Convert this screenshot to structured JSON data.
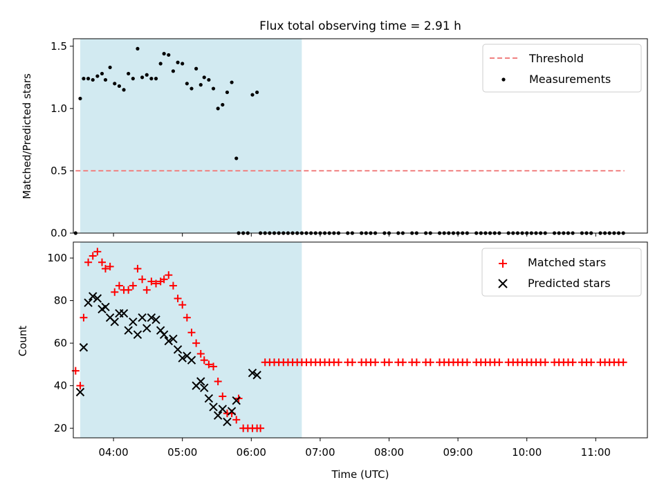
{
  "title": "Flux total observing time = 2.91 h",
  "chart_data": [
    {
      "type": "scatter",
      "ylabel": "Matched/Predicted stars",
      "xlabel": "",
      "xlim": [
        "03:25",
        "11:45"
      ],
      "ylim": [
        0,
        1.56
      ],
      "yticks": [
        "0.0",
        "0.5",
        "1.0",
        "1.5"
      ],
      "yticks_values": [
        0,
        0.5,
        1.0,
        1.5
      ],
      "shaded_interval": [
        "03:31",
        "06:44"
      ],
      "shade_color": "#add8e6",
      "legend_position": "top-right",
      "threshold": {
        "name": "Threshold",
        "y": 0.5,
        "x_range": [
          "03:27",
          "11:25"
        ],
        "color": "#f08080"
      },
      "series": [
        {
          "name": "Measurements",
          "marker": "dot",
          "color": "#000000",
          "points": [
            [
              "03:27",
              0.0
            ],
            [
              "03:31",
              1.08
            ],
            [
              "03:34",
              1.24
            ],
            [
              "03:38",
              1.24
            ],
            [
              "03:42",
              1.23
            ],
            [
              "03:46",
              1.26
            ],
            [
              "03:50",
              1.28
            ],
            [
              "03:53",
              1.23
            ],
            [
              "03:57",
              1.33
            ],
            [
              "04:01",
              1.2
            ],
            [
              "04:05",
              1.18
            ],
            [
              "04:09",
              1.15
            ],
            [
              "04:13",
              1.28
            ],
            [
              "04:17",
              1.24
            ],
            [
              "04:21",
              1.48
            ],
            [
              "04:25",
              1.25
            ],
            [
              "04:29",
              1.27
            ],
            [
              "04:33",
              1.24
            ],
            [
              "04:37",
              1.24
            ],
            [
              "04:41",
              1.36
            ],
            [
              "04:44",
              1.44
            ],
            [
              "04:48",
              1.43
            ],
            [
              "04:52",
              1.3
            ],
            [
              "04:56",
              1.37
            ],
            [
              "05:00",
              1.36
            ],
            [
              "05:04",
              1.2
            ],
            [
              "05:08",
              1.16
            ],
            [
              "05:12",
              1.32
            ],
            [
              "05:16",
              1.19
            ],
            [
              "05:19",
              1.25
            ],
            [
              "05:23",
              1.23
            ],
            [
              "05:27",
              1.16
            ],
            [
              "05:31",
              1.0
            ],
            [
              "05:35",
              1.03
            ],
            [
              "05:39",
              1.13
            ],
            [
              "05:43",
              1.21
            ],
            [
              "05:47",
              0.6
            ],
            [
              "05:49",
              0.0
            ],
            [
              "05:53",
              0.0
            ],
            [
              "05:57",
              0.0
            ],
            [
              "06:01",
              1.11
            ],
            [
              "06:05",
              1.13
            ],
            [
              "06:08",
              0.0
            ],
            [
              "06:12",
              0.0
            ],
            [
              "06:16",
              0.0
            ],
            [
              "06:20",
              0.0
            ],
            [
              "06:24",
              0.0
            ],
            [
              "06:28",
              0.0
            ],
            [
              "06:32",
              0.0
            ],
            [
              "06:36",
              0.0
            ],
            [
              "06:40",
              0.0
            ],
            [
              "06:44",
              0.0
            ],
            [
              "06:48",
              0.0
            ],
            [
              "06:52",
              0.0
            ],
            [
              "06:56",
              0.0
            ],
            [
              "07:00",
              0.0
            ],
            [
              "07:04",
              0.0
            ],
            [
              "07:08",
              0.0
            ],
            [
              "07:12",
              0.0
            ],
            [
              "07:16",
              0.0
            ],
            [
              "07:24",
              0.0
            ],
            [
              "07:28",
              0.0
            ],
            [
              "07:36",
              0.0
            ],
            [
              "07:40",
              0.0
            ],
            [
              "07:44",
              0.0
            ],
            [
              "07:48",
              0.0
            ],
            [
              "07:56",
              0.0
            ],
            [
              "08:00",
              0.0
            ],
            [
              "08:08",
              0.0
            ],
            [
              "08:12",
              0.0
            ],
            [
              "08:20",
              0.0
            ],
            [
              "08:24",
              0.0
            ],
            [
              "08:32",
              0.0
            ],
            [
              "08:36",
              0.0
            ],
            [
              "08:44",
              0.0
            ],
            [
              "08:48",
              0.0
            ],
            [
              "08:52",
              0.0
            ],
            [
              "08:56",
              0.0
            ],
            [
              "09:00",
              0.0
            ],
            [
              "09:04",
              0.0
            ],
            [
              "09:08",
              0.0
            ],
            [
              "09:16",
              0.0
            ],
            [
              "09:20",
              0.0
            ],
            [
              "09:24",
              0.0
            ],
            [
              "09:28",
              0.0
            ],
            [
              "09:32",
              0.0
            ],
            [
              "09:36",
              0.0
            ],
            [
              "09:44",
              0.0
            ],
            [
              "09:48",
              0.0
            ],
            [
              "09:52",
              0.0
            ],
            [
              "09:56",
              0.0
            ],
            [
              "10:00",
              0.0
            ],
            [
              "10:04",
              0.0
            ],
            [
              "10:08",
              0.0
            ],
            [
              "10:12",
              0.0
            ],
            [
              "10:16",
              0.0
            ],
            [
              "10:24",
              0.0
            ],
            [
              "10:28",
              0.0
            ],
            [
              "10:32",
              0.0
            ],
            [
              "10:36",
              0.0
            ],
            [
              "10:40",
              0.0
            ],
            [
              "10:48",
              0.0
            ],
            [
              "10:52",
              0.0
            ],
            [
              "10:56",
              0.0
            ],
            [
              "11:04",
              0.0
            ],
            [
              "11:08",
              0.0
            ],
            [
              "11:12",
              0.0
            ],
            [
              "11:16",
              0.0
            ],
            [
              "11:20",
              0.0
            ],
            [
              "11:24",
              0.0
            ]
          ]
        }
      ]
    },
    {
      "type": "scatter",
      "ylabel": "Count",
      "xlabel": "Time (UTC)",
      "xlim": [
        "03:25",
        "11:45"
      ],
      "ylim": [
        15.5,
        107.5
      ],
      "yticks": [
        "20",
        "40",
        "60",
        "80",
        "100"
      ],
      "yticks_values": [
        20,
        40,
        60,
        80,
        100
      ],
      "xticks": [
        "04:00",
        "05:00",
        "06:00",
        "07:00",
        "08:00",
        "09:00",
        "10:00",
        "11:00"
      ],
      "shaded_interval": [
        "03:31",
        "06:44"
      ],
      "shade_color": "#add8e6",
      "legend_position": "top-right",
      "series": [
        {
          "name": "Matched stars",
          "marker": "plus",
          "color": "#ff0000",
          "points": [
            [
              "03:27",
              47
            ],
            [
              "03:31",
              40
            ],
            [
              "03:34",
              72
            ],
            [
              "03:38",
              98
            ],
            [
              "03:42",
              101
            ],
            [
              "03:46",
              103
            ],
            [
              "03:50",
              98
            ],
            [
              "03:53",
              95
            ],
            [
              "03:57",
              96
            ],
            [
              "04:01",
              84
            ],
            [
              "04:05",
              87
            ],
            [
              "04:09",
              85
            ],
            [
              "04:13",
              85
            ],
            [
              "04:17",
              87
            ],
            [
              "04:21",
              95
            ],
            [
              "04:25",
              90
            ],
            [
              "04:29",
              85
            ],
            [
              "04:33",
              89
            ],
            [
              "04:37",
              88
            ],
            [
              "04:41",
              89
            ],
            [
              "04:44",
              90
            ],
            [
              "04:48",
              92
            ],
            [
              "04:52",
              87
            ],
            [
              "04:56",
              81
            ],
            [
              "05:00",
              78
            ],
            [
              "05:04",
              72
            ],
            [
              "05:08",
              65
            ],
            [
              "05:12",
              60
            ],
            [
              "05:16",
              55
            ],
            [
              "05:19",
              52
            ],
            [
              "05:23",
              50
            ],
            [
              "05:27",
              49
            ],
            [
              "05:31",
              42
            ],
            [
              "05:35",
              35
            ],
            [
              "05:39",
              27
            ],
            [
              "05:43",
              27
            ],
            [
              "05:47",
              24
            ],
            [
              "05:49",
              34
            ],
            [
              "05:53",
              20
            ],
            [
              "05:57",
              20
            ],
            [
              "06:01",
              20
            ],
            [
              "06:05",
              20
            ],
            [
              "06:08",
              20
            ],
            [
              "06:12",
              51
            ],
            [
              "06:16",
              51
            ],
            [
              "06:20",
              51
            ],
            [
              "06:24",
              51
            ],
            [
              "06:28",
              51
            ],
            [
              "06:32",
              51
            ],
            [
              "06:36",
              51
            ],
            [
              "06:40",
              51
            ],
            [
              "06:44",
              51
            ],
            [
              "06:48",
              51
            ],
            [
              "06:52",
              51
            ],
            [
              "06:56",
              51
            ],
            [
              "07:00",
              51
            ],
            [
              "07:04",
              51
            ],
            [
              "07:08",
              51
            ],
            [
              "07:12",
              51
            ],
            [
              "07:16",
              51
            ],
            [
              "07:24",
              51
            ],
            [
              "07:28",
              51
            ],
            [
              "07:36",
              51
            ],
            [
              "07:40",
              51
            ],
            [
              "07:44",
              51
            ],
            [
              "07:48",
              51
            ],
            [
              "07:56",
              51
            ],
            [
              "08:00",
              51
            ],
            [
              "08:08",
              51
            ],
            [
              "08:12",
              51
            ],
            [
              "08:20",
              51
            ],
            [
              "08:24",
              51
            ],
            [
              "08:32",
              51
            ],
            [
              "08:36",
              51
            ],
            [
              "08:44",
              51
            ],
            [
              "08:48",
              51
            ],
            [
              "08:52",
              51
            ],
            [
              "08:56",
              51
            ],
            [
              "09:00",
              51
            ],
            [
              "09:04",
              51
            ],
            [
              "09:08",
              51
            ],
            [
              "09:16",
              51
            ],
            [
              "09:20",
              51
            ],
            [
              "09:24",
              51
            ],
            [
              "09:28",
              51
            ],
            [
              "09:32",
              51
            ],
            [
              "09:36",
              51
            ],
            [
              "09:44",
              51
            ],
            [
              "09:48",
              51
            ],
            [
              "09:52",
              51
            ],
            [
              "09:56",
              51
            ],
            [
              "10:00",
              51
            ],
            [
              "10:04",
              51
            ],
            [
              "10:08",
              51
            ],
            [
              "10:12",
              51
            ],
            [
              "10:16",
              51
            ],
            [
              "10:24",
              51
            ],
            [
              "10:28",
              51
            ],
            [
              "10:32",
              51
            ],
            [
              "10:36",
              51
            ],
            [
              "10:40",
              51
            ],
            [
              "10:48",
              51
            ],
            [
              "10:52",
              51
            ],
            [
              "10:56",
              51
            ],
            [
              "11:04",
              51
            ],
            [
              "11:08",
              51
            ],
            [
              "11:12",
              51
            ],
            [
              "11:16",
              51
            ],
            [
              "11:20",
              51
            ],
            [
              "11:24",
              51
            ]
          ]
        },
        {
          "name": "Predicted stars",
          "marker": "x",
          "color": "#000000",
          "points": [
            [
              "03:31",
              37
            ],
            [
              "03:34",
              58
            ],
            [
              "03:38",
              79
            ],
            [
              "03:42",
              82
            ],
            [
              "03:46",
              81
            ],
            [
              "03:50",
              76
            ],
            [
              "03:53",
              77
            ],
            [
              "03:57",
              72
            ],
            [
              "04:01",
              70
            ],
            [
              "04:05",
              74
            ],
            [
              "04:09",
              74
            ],
            [
              "04:13",
              66
            ],
            [
              "04:17",
              70
            ],
            [
              "04:21",
              64
            ],
            [
              "04:25",
              72
            ],
            [
              "04:29",
              67
            ],
            [
              "04:33",
              72
            ],
            [
              "04:37",
              71
            ],
            [
              "04:41",
              66
            ],
            [
              "04:44",
              64
            ],
            [
              "04:48",
              61
            ],
            [
              "04:52",
              62
            ],
            [
              "04:56",
              57
            ],
            [
              "05:00",
              53
            ],
            [
              "05:04",
              54
            ],
            [
              "05:08",
              52
            ],
            [
              "05:12",
              40
            ],
            [
              "05:16",
              42
            ],
            [
              "05:19",
              39
            ],
            [
              "05:23",
              34
            ],
            [
              "05:27",
              30
            ],
            [
              "05:31",
              26
            ],
            [
              "05:35",
              29
            ],
            [
              "05:39",
              23
            ],
            [
              "05:43",
              28
            ],
            [
              "05:47",
              33
            ],
            [
              "06:01",
              46
            ],
            [
              "06:05",
              45
            ]
          ]
        }
      ]
    }
  ]
}
